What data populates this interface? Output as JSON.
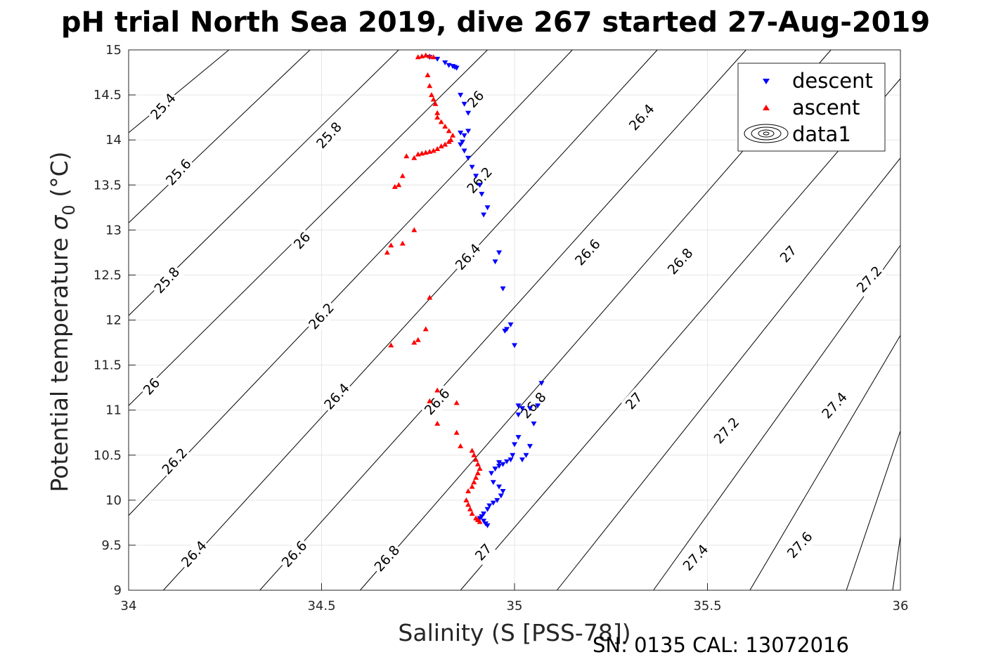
{
  "chart_data": {
    "type": "scatter",
    "title": "pH trial North Sea 2019, dive 267 started 27-Aug-2019",
    "xlabel": "Salinity (S [PSS-78])",
    "ylabel_main": "Potential temperature ",
    "ylabel_sigma": "σ",
    "ylabel_sub": "0",
    "ylabel_unit": " (°C)",
    "footer": "SN: 0135  CAL: 13072016",
    "xlim": [
      34,
      36
    ],
    "ylim": [
      9,
      15
    ],
    "xticks": [
      34,
      34.5,
      35,
      35.5,
      36
    ],
    "xtick_labels": [
      "34",
      "34.5",
      "35",
      "35.5",
      "36"
    ],
    "yticks": [
      9,
      9.5,
      10,
      10.5,
      11,
      11.5,
      12,
      12.5,
      13,
      13.5,
      14,
      14.5,
      15
    ],
    "ytick_labels": [
      "9",
      "9.5",
      "10",
      "10.5",
      "11",
      "11.5",
      "12",
      "12.5",
      "13",
      "13.5",
      "14",
      "14.5",
      "15"
    ],
    "grid": true,
    "legend_position": "top-right",
    "legend": [
      {
        "label": "descent",
        "color": "#0000ff",
        "marker": "triangle-down"
      },
      {
        "label": "ascent",
        "color": "#ff0000",
        "marker": "triangle-up"
      },
      {
        "label": "data1",
        "color": "#000000",
        "marker": "contour"
      }
    ],
    "contours": {
      "color": "#000000",
      "lines": [
        {
          "x": [
            34.0,
            34.26
          ],
          "y": [
            14.08,
            15.0
          ]
        },
        {
          "x": [
            34.0,
            34.47
          ],
          "y": [
            13.08,
            15.0
          ]
        },
        {
          "x": [
            34.0,
            34.7
          ],
          "y": [
            12.05,
            15.0
          ]
        },
        {
          "x": [
            34.0,
            34.93
          ],
          "y": [
            11.05,
            15.0
          ]
        },
        {
          "x": [
            34.0,
            35.15
          ],
          "y": [
            9.83,
            15.0
          ]
        },
        {
          "x": [
            34.09,
            35.37
          ],
          "y": [
            9.0,
            15.0
          ]
        },
        {
          "x": [
            34.34,
            35.6
          ],
          "y": [
            9.0,
            15.0
          ]
        },
        {
          "x": [
            34.6,
            35.82
          ],
          "y": [
            9.0,
            15.0
          ]
        },
        {
          "x": [
            34.86,
            36.0
          ],
          "y": [
            9.0,
            14.68
          ]
        },
        {
          "x": [
            35.11,
            36.0
          ],
          "y": [
            9.0,
            13.8
          ]
        },
        {
          "x": [
            35.36,
            36.0
          ],
          "y": [
            9.0,
            12.83
          ]
        },
        {
          "x": [
            35.61,
            36.0
          ],
          "y": [
            9.0,
            11.83
          ]
        },
        {
          "x": [
            35.86,
            36.0
          ],
          "y": [
            9.0,
            10.77
          ]
        },
        {
          "x": [
            35.98,
            36.0
          ],
          "y": [
            9.0,
            9.6
          ]
        }
      ],
      "labels": [
        {
          "text": "25.4",
          "x": 34.09,
          "y": 14.37
        },
        {
          "text": "25.6",
          "x": 34.13,
          "y": 13.64
        },
        {
          "text": "25.8",
          "x": 34.52,
          "y": 14.05
        },
        {
          "text": "25.8",
          "x": 34.1,
          "y": 12.44
        },
        {
          "text": "26",
          "x": 34.9,
          "y": 14.45
        },
        {
          "text": "26",
          "x": 34.45,
          "y": 12.88
        },
        {
          "text": "26",
          "x": 34.06,
          "y": 11.26
        },
        {
          "text": "26.2",
          "x": 34.91,
          "y": 13.55
        },
        {
          "text": "26.2",
          "x": 34.5,
          "y": 12.04
        },
        {
          "text": "26.2",
          "x": 34.12,
          "y": 10.43
        },
        {
          "text": "26.4",
          "x": 35.33,
          "y": 14.25
        },
        {
          "text": "26.4",
          "x": 34.88,
          "y": 12.7
        },
        {
          "text": "26.4",
          "x": 34.54,
          "y": 11.15
        },
        {
          "text": "26.4",
          "x": 34.17,
          "y": 9.4
        },
        {
          "text": "26.6",
          "x": 35.19,
          "y": 12.75
        },
        {
          "text": "26.6",
          "x": 34.8,
          "y": 11.09
        },
        {
          "text": "26.6",
          "x": 34.43,
          "y": 9.4
        },
        {
          "text": "26.8",
          "x": 35.43,
          "y": 12.65
        },
        {
          "text": "26.8",
          "x": 35.05,
          "y": 11.05
        },
        {
          "text": "26.8",
          "x": 34.67,
          "y": 9.35
        },
        {
          "text": "27",
          "x": 35.71,
          "y": 12.73
        },
        {
          "text": "27",
          "x": 35.31,
          "y": 11.1
        },
        {
          "text": "27",
          "x": 34.92,
          "y": 9.42
        },
        {
          "text": "27.2",
          "x": 35.92,
          "y": 12.45
        },
        {
          "text": "27.2",
          "x": 35.55,
          "y": 10.77
        },
        {
          "text": "27.4",
          "x": 35.83,
          "y": 11.05
        },
        {
          "text": "27.4",
          "x": 35.47,
          "y": 9.36
        },
        {
          "text": "27.6",
          "x": 35.74,
          "y": 9.5
        }
      ]
    },
    "series": [
      {
        "name": "descent",
        "color": "#0000ff",
        "marker": "triangle-down",
        "x": [
          34.78,
          34.8,
          34.82,
          34.83,
          34.84,
          34.845,
          34.85,
          34.86,
          34.87,
          34.88,
          34.86,
          34.87,
          34.88,
          34.865,
          34.86,
          34.87,
          34.88,
          34.89,
          34.9,
          34.91,
          34.915,
          34.93,
          34.92,
          34.96,
          34.95,
          34.97,
          34.975,
          34.98,
          34.99,
          35.0,
          35.01,
          35.02,
          35.01,
          35.04,
          35.07,
          35.06,
          35.05,
          35.04,
          35.03,
          35.02,
          35.01,
          35.0,
          34.995,
          34.99,
          34.98,
          34.97,
          34.96,
          34.95,
          34.94,
          34.945,
          34.96,
          34.97,
          34.965,
          34.955,
          34.945,
          34.935,
          34.93,
          34.92,
          34.915,
          34.91,
          34.92,
          34.925,
          34.93,
          34.95,
          34.96
        ],
        "y": [
          14.92,
          14.9,
          14.86,
          14.83,
          14.82,
          14.81,
          14.8,
          14.5,
          14.4,
          14.3,
          14.08,
          14.05,
          14.1,
          13.98,
          13.95,
          13.88,
          13.8,
          13.7,
          13.6,
          13.5,
          13.4,
          13.25,
          13.17,
          12.75,
          12.65,
          12.35,
          11.88,
          11.9,
          11.95,
          11.72,
          11.05,
          11.02,
          10.95,
          11.02,
          11.3,
          11.05,
          10.85,
          10.6,
          10.5,
          10.45,
          10.7,
          10.62,
          10.5,
          10.45,
          10.43,
          10.4,
          10.38,
          10.35,
          10.3,
          10.2,
          10.15,
          10.1,
          10.05,
          10.0,
          9.97,
          9.94,
          9.9,
          9.85,
          9.82,
          9.8,
          9.77,
          9.74,
          9.72,
          10.35,
          10.42
        ]
      },
      {
        "name": "ascent",
        "color": "#ff0000",
        "marker": "triangle-up",
        "x": [
          34.75,
          34.76,
          34.77,
          34.78,
          34.79,
          34.775,
          34.78,
          34.785,
          34.79,
          34.795,
          34.8,
          34.8,
          34.81,
          34.82,
          34.83,
          34.84,
          34.835,
          34.83,
          34.82,
          34.81,
          34.8,
          34.79,
          34.78,
          34.77,
          34.76,
          34.75,
          34.74,
          34.72,
          34.71,
          34.7,
          34.69,
          34.68,
          34.71,
          34.74,
          34.78,
          34.67,
          34.68,
          34.74,
          34.75,
          34.77,
          34.8,
          34.85,
          34.78,
          34.8,
          34.85,
          34.86,
          34.89,
          34.895,
          34.9,
          34.905,
          34.91,
          34.905,
          34.9,
          34.895,
          34.89,
          34.88,
          34.875,
          34.88,
          34.885,
          34.89,
          34.9,
          34.905,
          34.91
        ],
        "y": [
          14.92,
          14.93,
          14.94,
          14.93,
          14.92,
          14.72,
          14.6,
          14.5,
          14.45,
          14.4,
          14.3,
          14.25,
          14.2,
          14.15,
          14.1,
          14.05,
          14.0,
          13.98,
          13.95,
          13.93,
          13.9,
          13.88,
          13.87,
          13.86,
          13.85,
          13.84,
          13.8,
          13.82,
          13.6,
          13.5,
          13.48,
          12.83,
          12.85,
          13.0,
          12.25,
          12.75,
          11.72,
          11.75,
          11.78,
          11.9,
          11.22,
          11.08,
          11.1,
          10.85,
          10.75,
          10.6,
          10.55,
          10.5,
          10.45,
          10.4,
          10.35,
          10.3,
          10.25,
          10.2,
          10.15,
          10.1,
          10.0,
          9.95,
          9.9,
          9.85,
          9.8,
          9.78,
          9.76
        ]
      }
    ]
  }
}
